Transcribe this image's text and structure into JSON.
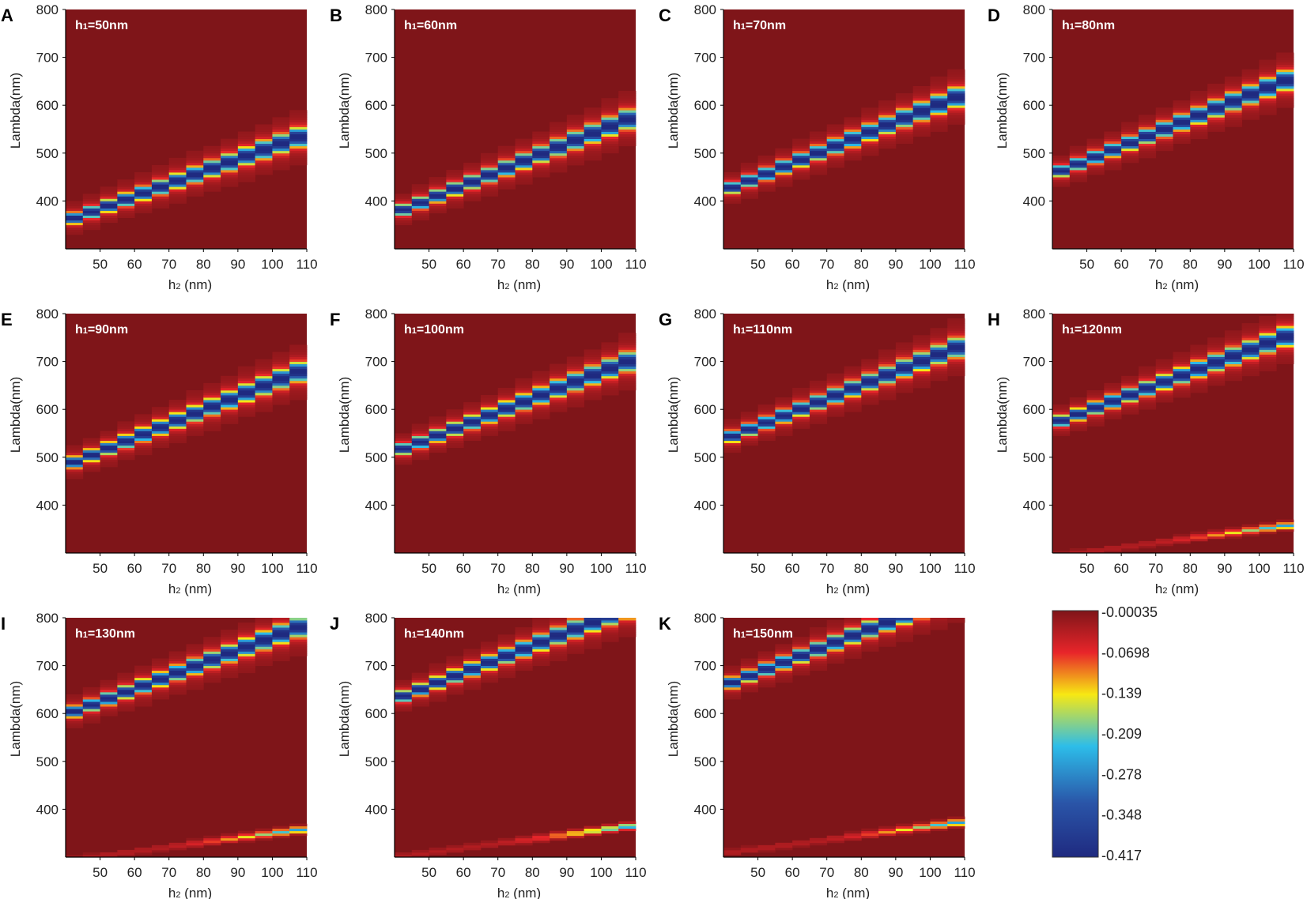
{
  "chart_data": {
    "type": "heatmap",
    "xlabel_base": "h",
    "xlabel_sub": "2",
    "xlabel_unit": " (nm)",
    "ylabel": "Lambda(nm)",
    "xlim": [
      40,
      110
    ],
    "ylim": [
      300,
      800
    ],
    "x_ticks": [
      "50",
      "60",
      "70",
      "80",
      "90",
      "100",
      "110"
    ],
    "y_ticks": [
      "800",
      "700",
      "600",
      "500",
      "400"
    ],
    "inset_base": "h",
    "inset_sub": "1",
    "panels": [
      {
        "letter": "A",
        "h1": "=50nm",
        "base_lambda": 254,
        "slope": 2.6,
        "second_base": null
      },
      {
        "letter": "B",
        "h1": "=60nm",
        "base_lambda": 259,
        "slope": 2.9,
        "second_base": null
      },
      {
        "letter": "C",
        "h1": "=70nm",
        "base_lambda": 305,
        "slope": 2.9,
        "second_base": null
      },
      {
        "letter": "D",
        "h1": "=80nm",
        "base_lambda": 340,
        "slope": 2.9,
        "second_base": null
      },
      {
        "letter": "E",
        "h1": "=90nm",
        "base_lambda": 367,
        "slope": 2.9,
        "second_base": null
      },
      {
        "letter": "F",
        "h1": "=100nm",
        "base_lambda": 399,
        "slope": 2.8,
        "second_base": null
      },
      {
        "letter": "G",
        "h1": "=110nm",
        "base_lambda": 423,
        "slope": 2.85,
        "second_base": null
      },
      {
        "letter": "H",
        "h1": "=120nm",
        "base_lambda": 462,
        "slope": 2.7,
        "second_base": 255
      },
      {
        "letter": "I",
        "h1": "=130nm",
        "base_lambda": 490,
        "slope": 2.7,
        "second_base": 255
      },
      {
        "letter": "J",
        "h1": "=140nm",
        "base_lambda": 518,
        "slope": 2.8,
        "second_base": 262
      },
      {
        "letter": "K",
        "h1": "=150nm",
        "base_lambda": 546,
        "slope": 2.8,
        "second_base": 270
      }
    ],
    "colorbar": {
      "labels": [
        "-0.00035",
        "-0.0698",
        "-0.139",
        "-0.209",
        "-0.278",
        "-0.348",
        "-0.417"
      ],
      "min": -0.417,
      "max": -0.00035,
      "colors": [
        "#7f1519",
        "#e8252a",
        "#f7e813",
        "#2dbde9",
        "#2a55a8",
        "#1f2a80"
      ]
    }
  }
}
